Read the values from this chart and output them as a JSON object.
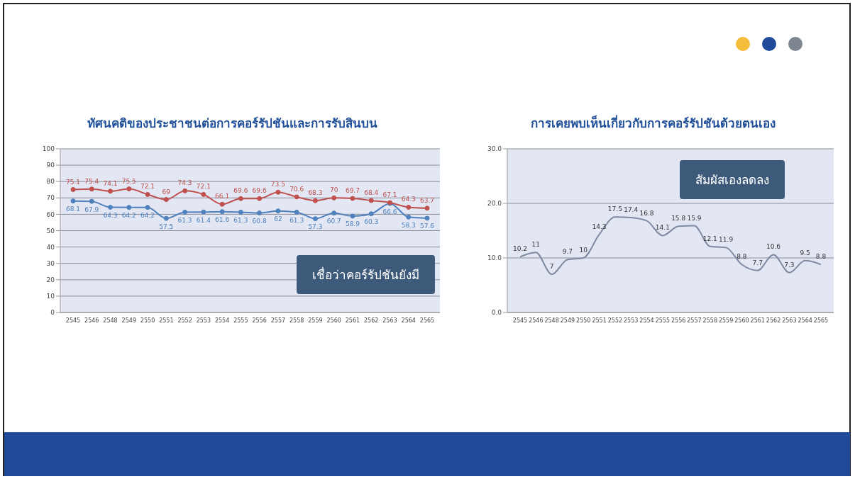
{
  "chart_data": [
    {
      "type": "line",
      "title": "ทัศนคติของประชาชนต่อการคอร์รัปชันและการรับสินบน",
      "categories": [
        "2545",
        "2546",
        "2548",
        "2549",
        "2550",
        "2551",
        "2552",
        "2553",
        "2554",
        "2555",
        "2556",
        "2557",
        "2558",
        "2559",
        "2560",
        "2561",
        "2562",
        "2563",
        "2564",
        "2565"
      ],
      "series": [
        {
          "color": "#4f81bd",
          "values": [
            68.1,
            67.9,
            64.3,
            64.2,
            64.2,
            57.5,
            61.3,
            61.4,
            61.6,
            61.3,
            60.8,
            62.0,
            61.3,
            57.3,
            60.7,
            58.9,
            60.3,
            66.6,
            58.3,
            57.6
          ]
        },
        {
          "color": "#c0504d",
          "values": [
            75.1,
            75.4,
            74.1,
            75.5,
            72.1,
            69.0,
            74.3,
            72.1,
            66.1,
            69.6,
            69.6,
            73.5,
            70.6,
            68.3,
            70,
            69.7,
            68.4,
            67.1,
            64.3,
            63.7
          ]
        }
      ],
      "ylim": [
        0,
        100
      ],
      "yticks": [
        0,
        10,
        20,
        30,
        40,
        50,
        60,
        70,
        80,
        90,
        100
      ],
      "grid": "y",
      "marker": "circle",
      "data_labels": true,
      "annotations": [
        "เชื่อว่าคอร์รัปชันยังมี"
      ]
    },
    {
      "type": "line",
      "title": "การเคยพบเห็นเกี่ยวกับการคอร์รัปชันด้วยตนเอง",
      "categories": [
        "2545",
        "2546",
        "2548",
        "2549",
        "2550",
        "2551",
        "2552",
        "2553",
        "2554",
        "2555",
        "2556",
        "2557",
        "2558",
        "2559",
        "2560",
        "2561",
        "2562",
        "2563",
        "2564",
        "2565"
      ],
      "series": [
        {
          "color": "#7f8aa3",
          "values": [
            10.2,
            11.0,
            7.0,
            9.7,
            10.0,
            14.3,
            17.5,
            17.4,
            16.8,
            14.1,
            15.8,
            15.9,
            12.1,
            11.9,
            8.8,
            7.7,
            10.6,
            7.3,
            9.5,
            8.8
          ]
        }
      ],
      "ylim": [
        0,
        30
      ],
      "yticks": [
        {
          "value": 0,
          "label": "0.0"
        },
        {
          "value": 10,
          "label": "10.0"
        },
        {
          "value": 20,
          "label": "20.0"
        },
        {
          "value": 30,
          "label": "30.0"
        }
      ],
      "grid": "y",
      "data_labels": true,
      "annotations": [
        "สัมผัสเองลดลง"
      ]
    }
  ]
}
